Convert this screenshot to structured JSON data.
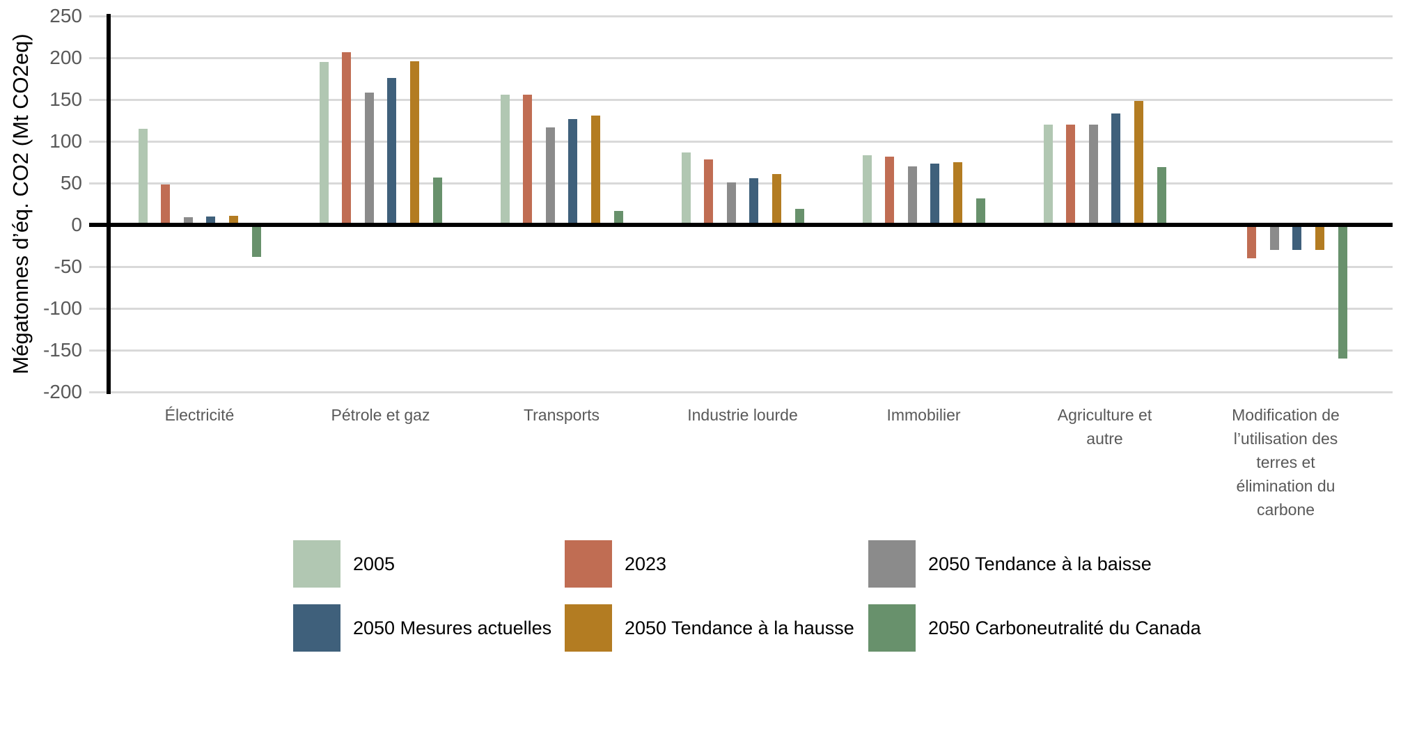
{
  "chart_data": {
    "type": "bar",
    "title": "",
    "ylabel": "Mégatonnes d’éq. CO2 (Mt CO2eq)",
    "xlabel": "",
    "ylim": [
      -200,
      250
    ],
    "yticks": [
      250,
      200,
      150,
      100,
      50,
      0,
      -50,
      -100,
      -150,
      -200
    ],
    "grid": "horizontal",
    "legend_position": "bottom",
    "categories": [
      "Électricité",
      "Pétrole et gaz",
      "Transports",
      "Industrie lourde",
      "Immobilier",
      "Agriculture et autre",
      "Modification de l’utilisation des terres et élimination du carbone"
    ],
    "series": [
      {
        "name": "2005",
        "color": "#b1c7b2",
        "values": [
          115,
          195,
          156,
          87,
          83,
          120,
          0
        ]
      },
      {
        "name": "2023",
        "color": "#c06d53",
        "values": [
          48,
          207,
          156,
          78,
          82,
          120,
          -40
        ]
      },
      {
        "name": "2050 Tendance à la baisse",
        "color": "#8b8b8b",
        "values": [
          9,
          158,
          117,
          51,
          70,
          120,
          -30
        ]
      },
      {
        "name": "2050 Mesures actuelles",
        "color": "#3f607b",
        "values": [
          10,
          176,
          127,
          56,
          73,
          133,
          -30
        ]
      },
      {
        "name": "2050 Tendance à la hausse",
        "color": "#b37c22",
        "values": [
          11,
          196,
          131,
          61,
          75,
          148,
          -30
        ]
      },
      {
        "name": "2050 Carboneutralité du Canada",
        "color": "#68916c",
        "values": [
          -38,
          57,
          17,
          19,
          32,
          69,
          -160
        ]
      }
    ],
    "colors": {
      "gridline": "#d9d9d9",
      "axis": "#000000",
      "tick_text": "#595959",
      "category_text": "#595959",
      "legend_text": "#000000",
      "background": "#ffffff"
    }
  }
}
